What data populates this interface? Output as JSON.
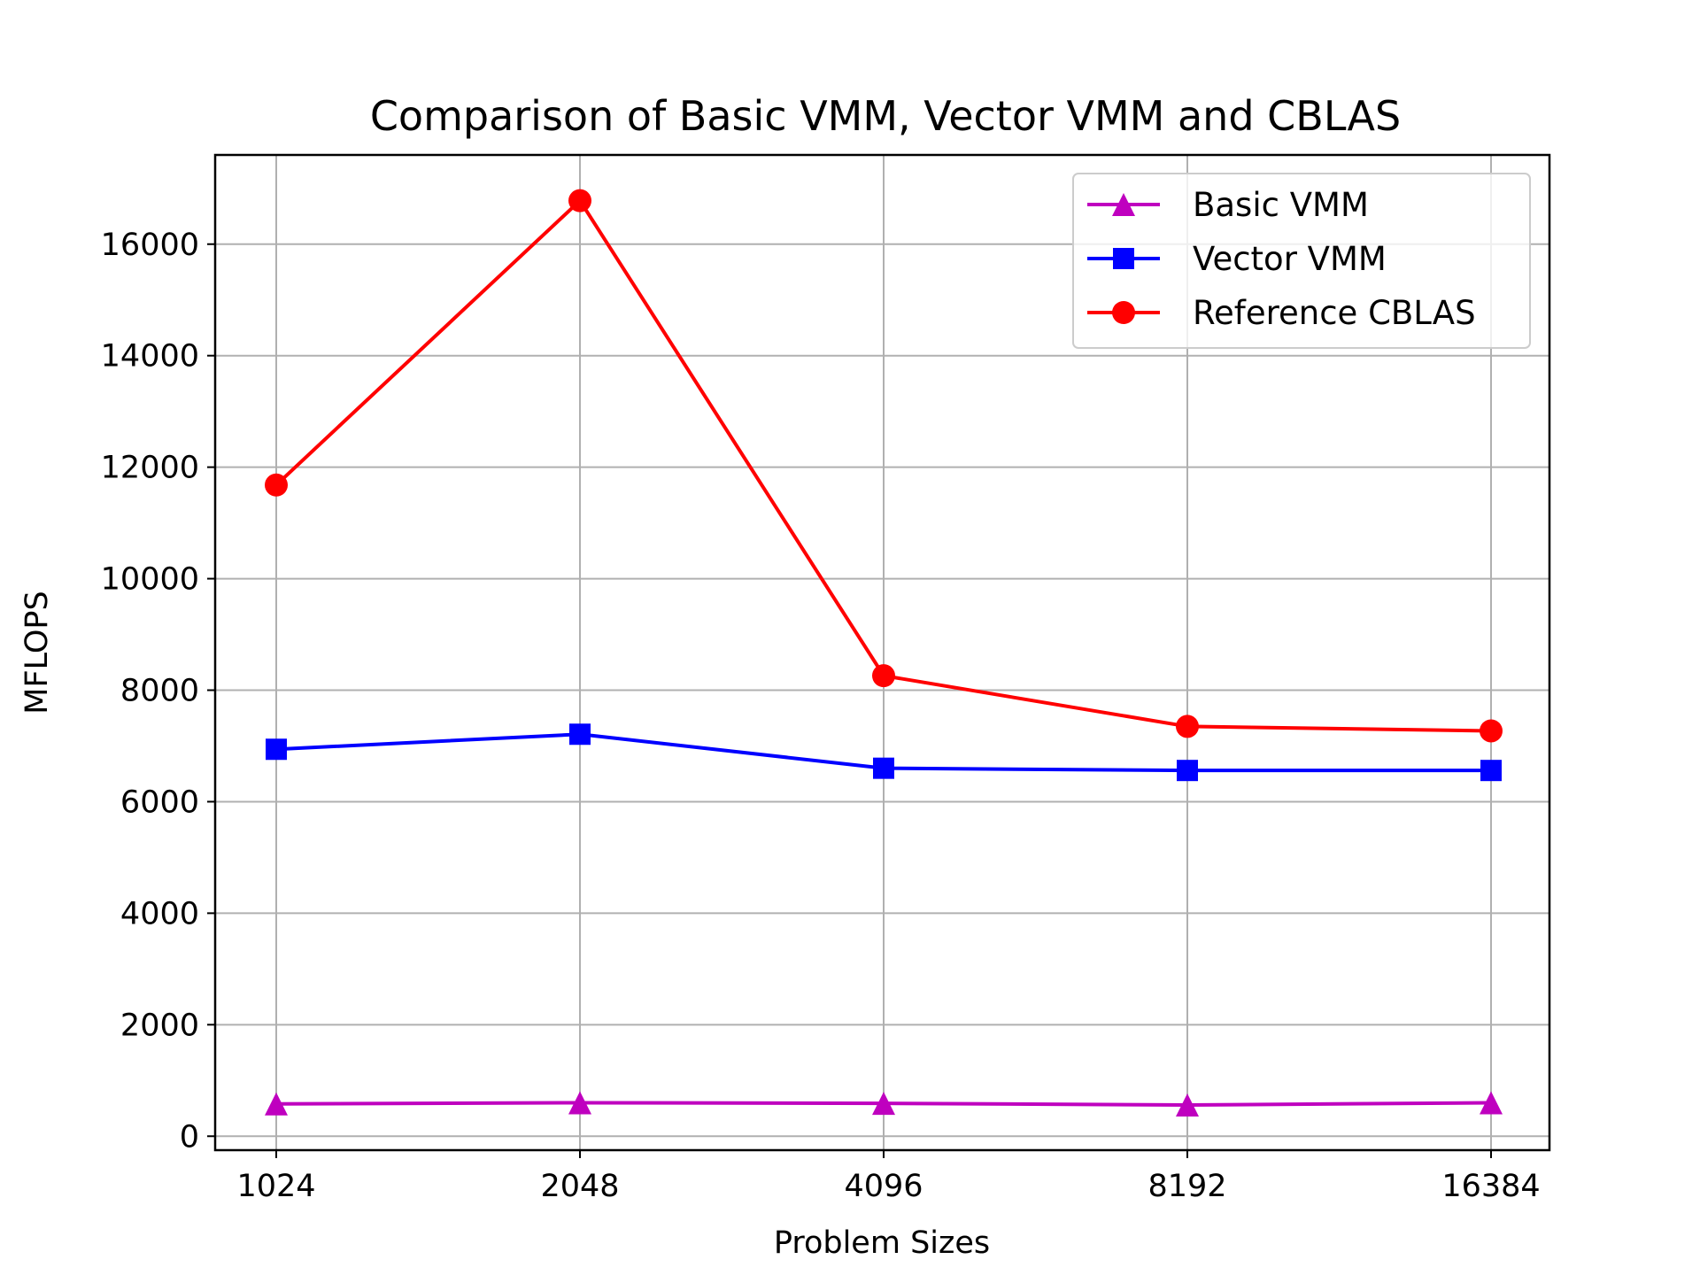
{
  "chart_data": {
    "type": "line",
    "title": "Comparison of Basic VMM, Vector VMM and CBLAS",
    "xlabel": "Problem Sizes",
    "ylabel": "MFLOPS",
    "x": [
      "1024",
      "2048",
      "4096",
      "8192",
      "16384"
    ],
    "yticks": [
      0,
      2000,
      4000,
      6000,
      8000,
      10000,
      12000,
      14000,
      16000
    ],
    "ylim": [
      -250,
      17600
    ],
    "grid": true,
    "legend_position": "top-right",
    "series": [
      {
        "name": "Basic VMM",
        "color": "#bf00bf",
        "marker": "triangle",
        "values": [
          580,
          600,
          590,
          560,
          600
        ]
      },
      {
        "name": "Vector VMM",
        "color": "#0000ff",
        "marker": "square",
        "values": [
          6940,
          7210,
          6600,
          6560,
          6560
        ]
      },
      {
        "name": "Reference CBLAS",
        "color": "#ff0000",
        "marker": "circle",
        "values": [
          11680,
          16780,
          8260,
          7350,
          7270
        ]
      }
    ]
  }
}
